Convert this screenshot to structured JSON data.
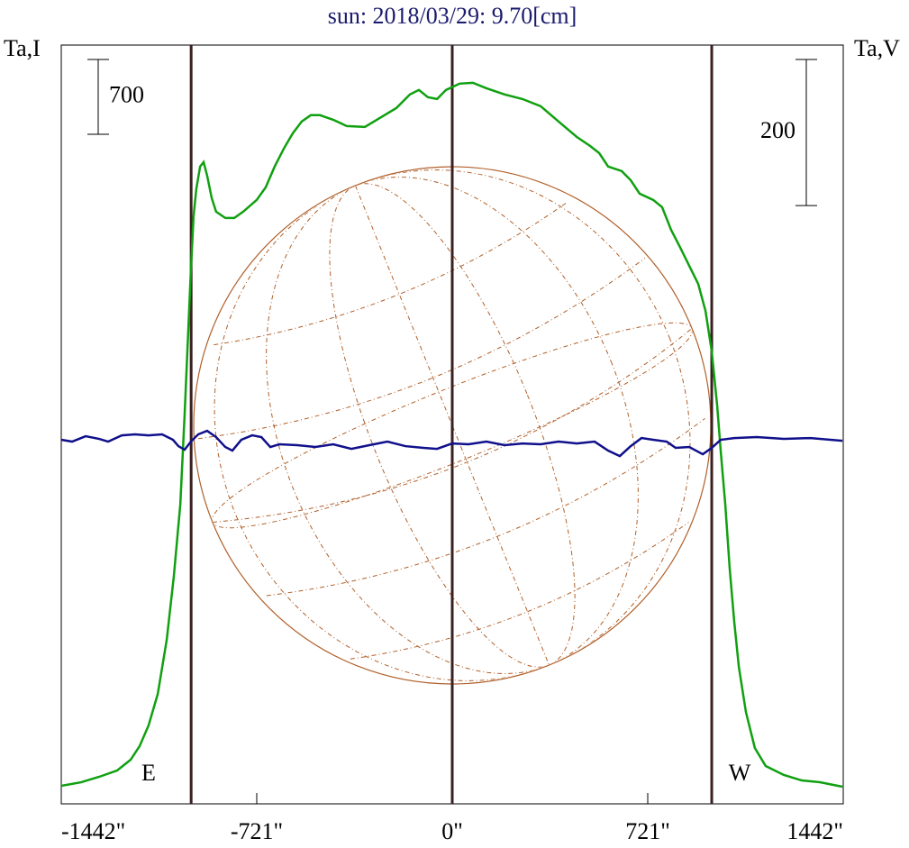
{
  "chart_data": {
    "type": "line",
    "title": "sun: 2018/03/29: 9.70[cm]",
    "ylabel": "Ta,I",
    "y2label": "Ta,V",
    "xlim": [
      -1442,
      1442
    ],
    "xticks": [
      {
        "value": -1442,
        "label": "-1442\""
      },
      {
        "value": -721,
        "label": "-721\""
      },
      {
        "value": 0,
        "label": "0\""
      },
      {
        "value": 721,
        "label": "721\""
      },
      {
        "value": 1442,
        "label": "1442\""
      }
    ],
    "ylim": [
      0,
      7100
    ],
    "y2lim": [
      -496,
      543
    ],
    "vlines": [
      -963,
      0,
      957
    ],
    "annotations": [
      {
        "text": "E",
        "x": -1120
      },
      {
        "text": "W",
        "x": 1060
      }
    ],
    "scale_bars": [
      {
        "value": 700,
        "axis": "y"
      },
      {
        "value": 200,
        "axis": "y2"
      }
    ],
    "series": [
      {
        "name": "I",
        "color": "#10a010",
        "axis": "y",
        "x": [
          -1442,
          -1369,
          -1302,
          -1236,
          -1186,
          -1153,
          -1120,
          -1086,
          -1053,
          -1027,
          -1003,
          -987,
          -974,
          -964,
          -954,
          -944,
          -930,
          -917,
          -904,
          -887,
          -871,
          -837,
          -804,
          -771,
          -721,
          -688,
          -655,
          -621,
          -588,
          -555,
          -522,
          -488,
          -439,
          -389,
          -322,
          -272,
          -206,
          -156,
          -123,
          -90,
          -56,
          -23,
          27,
          76,
          126,
          193,
          259,
          326,
          392,
          459,
          508,
          542,
          575,
          625,
          658,
          691,
          741,
          774,
          807,
          841,
          874,
          907,
          934,
          957,
          977,
          990,
          1007,
          1023,
          1040,
          1057,
          1083,
          1116,
          1156,
          1223,
          1289,
          1356,
          1439
        ],
        "values": [
          169,
          202,
          253,
          312,
          413,
          540,
          734,
          1029,
          1535,
          2125,
          2800,
          3643,
          4403,
          4993,
          5499,
          5752,
          5963,
          6005,
          5878,
          5668,
          5541,
          5482,
          5482,
          5541,
          5651,
          5769,
          5963,
          6132,
          6275,
          6385,
          6444,
          6444,
          6401,
          6342,
          6334,
          6410,
          6511,
          6638,
          6680,
          6612,
          6595,
          6680,
          6739,
          6747,
          6696,
          6638,
          6595,
          6528,
          6385,
          6241,
          6157,
          6089,
          5963,
          5921,
          5836,
          5710,
          5651,
          5583,
          5372,
          5204,
          5035,
          4866,
          4613,
          4234,
          3728,
          3306,
          2800,
          2210,
          1704,
          1282,
          860,
          523,
          354,
          270,
          219,
          202,
          160
        ]
      },
      {
        "name": "V",
        "color": "#10108c",
        "axis": "y2",
        "x": [
          -1442,
          -1402,
          -1352,
          -1302,
          -1269,
          -1219,
          -1170,
          -1120,
          -1070,
          -1030,
          -1010,
          -987,
          -964,
          -937,
          -904,
          -871,
          -837,
          -811,
          -778,
          -738,
          -704,
          -671,
          -638,
          -571,
          -505,
          -439,
          -372,
          -306,
          -239,
          -173,
          -106,
          -56,
          0,
          60,
          126,
          193,
          259,
          326,
          392,
          459,
          525,
          575,
          618,
          658,
          698,
          741,
          791,
          824,
          874,
          924,
          957,
          990,
          1040,
          1123,
          1223,
          1322,
          1439
        ],
        "values": [
          2.5,
          0,
          7.4,
          3.7,
          0,
          8.6,
          9.9,
          8.6,
          9.9,
          2.5,
          -6.2,
          -11.1,
          0,
          9.9,
          14.8,
          6.2,
          -7.4,
          -12.3,
          2.5,
          8.6,
          6.2,
          -7.4,
          -3.7,
          -4.9,
          -7.4,
          -3.7,
          -9.9,
          -4.9,
          0,
          -6.2,
          -8.6,
          -9.9,
          -2.5,
          -3.7,
          0,
          -4.9,
          -2.5,
          -3.7,
          0,
          -2.5,
          0,
          -12.3,
          -19.8,
          -6.2,
          4.9,
          2.5,
          0,
          -8.6,
          -7.4,
          -17.3,
          -8.6,
          2.5,
          4.9,
          6.2,
          3.7,
          4.9,
          1.2
        ]
      }
    ]
  }
}
